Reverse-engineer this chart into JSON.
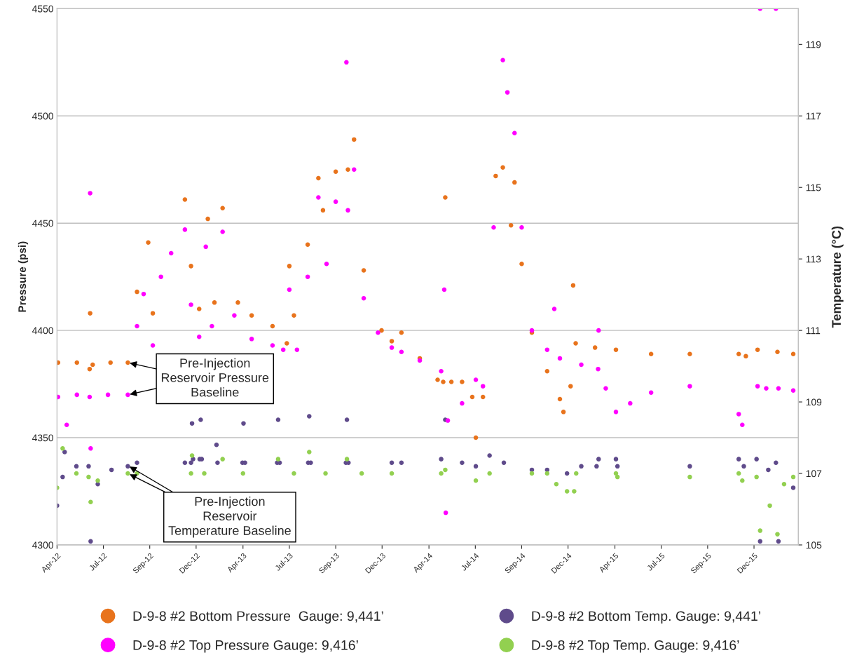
{
  "chart_data": {
    "type": "scatter",
    "ylabel": "Pressure (psi)",
    "y2label": "Temperature (°C)",
    "xlim": [
      "2012-04-01",
      "2016-03-26"
    ],
    "xticks": [
      {
        "value": "2012-04-01",
        "label": "Apr-12"
      },
      {
        "value": "2012-07-01",
        "label": "Jul-12"
      },
      {
        "value": "2012-09-30",
        "label": "Sep-12"
      },
      {
        "value": "2012-12-30",
        "label": "Dec-12"
      },
      {
        "value": "2013-04-01",
        "label": "Apr-13"
      },
      {
        "value": "2013-07-01",
        "label": "Jul-13"
      },
      {
        "value": "2013-09-30",
        "label": "Sep-13"
      },
      {
        "value": "2013-12-30",
        "label": "Dec-13"
      },
      {
        "value": "2014-04-01",
        "label": "Apr-14"
      },
      {
        "value": "2014-07-01",
        "label": "Jul-14"
      },
      {
        "value": "2014-09-30",
        "label": "Sep-14"
      },
      {
        "value": "2014-12-30",
        "label": "Dec-14"
      },
      {
        "value": "2015-04-01",
        "label": "Apr-15"
      },
      {
        "value": "2015-07-01",
        "label": "Jul-15"
      },
      {
        "value": "2015-09-30",
        "label": "Sep-15"
      },
      {
        "value": "2015-12-30",
        "label": "Dec-15"
      }
    ],
    "ylim": [
      4300,
      4550
    ],
    "yticks": [
      4300,
      4350,
      4400,
      4450,
      4500,
      4550
    ],
    "y2lim": [
      105,
      120
    ],
    "y2ticks": [
      105,
      107,
      109,
      111,
      113,
      115,
      117,
      119
    ],
    "grid": "y",
    "legend": "bottom",
    "marker": "circle",
    "series": [
      {
        "name": "D-9-8 #2 Bottom Pressure  Gauge: 9,441’",
        "color": "#e8731c",
        "x": [
          "2012-04-03",
          "2012-05-10",
          "2012-06-04",
          "2012-06-05",
          "2012-06-10",
          "2012-07-15",
          "2012-08-18",
          "2012-09-05",
          "2012-09-27",
          "2012-10-06",
          "2012-12-08",
          "2012-12-20",
          "2013-01-05",
          "2013-01-22",
          "2013-02-04",
          "2013-02-20",
          "2013-03-22",
          "2013-04-18",
          "2013-05-29",
          "2013-06-26",
          "2013-07-01",
          "2013-07-10",
          "2013-08-06",
          "2013-08-27",
          "2013-09-05",
          "2013-09-30",
          "2013-10-24",
          "2013-11-05",
          "2013-11-24",
          "2013-12-29",
          "2014-01-18",
          "2014-02-06",
          "2014-03-14",
          "2014-04-18",
          "2014-04-29",
          "2014-05-03",
          "2014-05-15",
          "2014-06-05",
          "2014-06-25",
          "2014-07-02",
          "2014-07-16",
          "2014-08-10",
          "2014-08-24",
          "2014-09-09",
          "2014-09-16",
          "2014-09-30",
          "2014-10-20",
          "2014-11-19",
          "2014-12-14",
          "2014-12-21",
          "2015-01-04",
          "2015-01-09",
          "2015-01-14",
          "2015-02-21",
          "2015-04-03",
          "2015-06-11",
          "2015-08-26",
          "2015-11-30",
          "2015-12-14",
          "2016-01-06",
          "2016-02-14",
          "2016-03-16"
        ],
        "values": [
          4385,
          4385,
          4382,
          4408,
          4384,
          4385,
          4385,
          4418,
          4441,
          4408,
          4461,
          4430,
          4410,
          4452,
          4413,
          4457,
          4413,
          4407,
          4402,
          4394,
          4430,
          4407,
          4440,
          4471,
          4456,
          4474,
          4475,
          4489,
          4428,
          4400,
          4395,
          4399,
          4387,
          4377,
          4376,
          4462,
          4376,
          4376,
          4369,
          4350,
          4369,
          4472,
          4476,
          4449,
          4469,
          4431,
          4399,
          4381,
          4368,
          4362,
          4374,
          4421,
          4394,
          4392,
          4391,
          4389,
          4389,
          4389,
          4388,
          4391,
          4390,
          4389
        ]
      },
      {
        "name": "D-9-8 #2 Top Pressure Gauge: 9,416’",
        "color": "#ff00ff",
        "x": [
          "2012-04-03",
          "2012-04-20",
          "2012-05-10",
          "2012-06-04",
          "2012-06-05",
          "2012-06-06",
          "2012-07-10",
          "2012-08-18",
          "2012-09-05",
          "2012-09-18",
          "2012-10-06",
          "2012-10-22",
          "2012-11-11",
          "2012-12-08",
          "2012-12-20",
          "2013-01-05",
          "2013-01-18",
          "2013-01-30",
          "2013-02-20",
          "2013-03-15",
          "2013-04-18",
          "2013-05-29",
          "2013-06-19",
          "2013-07-01",
          "2013-07-16",
          "2013-08-06",
          "2013-08-27",
          "2013-09-12",
          "2013-09-30",
          "2013-10-21",
          "2013-10-24",
          "2013-11-05",
          "2013-11-24",
          "2013-12-22",
          "2014-01-18",
          "2014-02-06",
          "2014-03-14",
          "2014-04-25",
          "2014-05-01",
          "2014-05-04",
          "2014-05-08",
          "2014-06-05",
          "2014-07-02",
          "2014-07-16",
          "2014-08-06",
          "2014-08-24",
          "2014-09-02",
          "2014-09-16",
          "2014-09-30",
          "2014-10-20",
          "2014-11-19",
          "2014-12-03",
          "2014-12-14",
          "2015-01-25",
          "2015-02-27",
          "2015-02-28",
          "2015-03-14",
          "2015-04-03",
          "2015-05-01",
          "2015-06-11",
          "2015-08-26",
          "2015-11-30",
          "2015-12-07",
          "2016-01-06",
          "2016-01-11",
          "2016-01-23",
          "2016-02-11",
          "2016-02-16",
          "2016-03-16"
        ],
        "values": [
          4369,
          4356,
          4370,
          4369,
          4464,
          4345,
          4370,
          4370,
          4402,
          4417,
          4393,
          4425,
          4436,
          4447,
          4412,
          4397,
          4439,
          4402,
          4446,
          4407,
          4396,
          4393,
          4391,
          4419,
          4391,
          4425,
          4462,
          4431,
          4460,
          4525,
          4456,
          4475,
          4415,
          4399,
          4392,
          4390,
          4386,
          4381,
          4419,
          4315,
          4358,
          4366,
          4377,
          4374,
          4448,
          4526,
          4511,
          4492,
          4448,
          4400,
          4391,
          4410,
          4387,
          4384,
          4382,
          4400,
          4373,
          4362,
          4366,
          4371,
          4374,
          4361,
          4356,
          4374,
          4550,
          4373,
          4550,
          4373,
          4372
        ]
      },
      {
        "name": "D-9-8 #2 Bottom Temp. Gauge: 9,441’",
        "color": "#5f4b8b",
        "axis": "y2",
        "x": [
          "2012-04-01",
          "2012-04-12",
          "2012-04-16",
          "2012-05-09",
          "2012-06-02",
          "2012-06-06",
          "2012-06-20",
          "2012-07-17",
          "2012-08-18",
          "2012-09-05",
          "2012-12-08",
          "2012-12-20",
          "2012-12-22",
          "2012-12-24",
          "2013-01-06",
          "2013-01-08",
          "2013-01-10",
          "2013-02-08",
          "2013-02-10",
          "2013-03-31",
          "2013-04-02",
          "2013-04-05",
          "2013-06-07",
          "2013-06-09",
          "2013-06-12",
          "2013-08-07",
          "2013-08-09",
          "2013-08-12",
          "2013-10-20",
          "2013-10-22",
          "2013-10-25",
          "2014-01-18",
          "2014-02-06",
          "2014-04-25",
          "2014-05-03",
          "2014-06-05",
          "2014-07-02",
          "2014-07-29",
          "2014-08-26",
          "2014-10-20",
          "2014-11-19",
          "2014-12-28",
          "2015-01-25",
          "2015-02-24",
          "2015-02-28",
          "2015-04-03",
          "2015-04-06",
          "2015-08-26",
          "2015-11-30",
          "2015-12-10",
          "2016-01-04",
          "2016-01-11",
          "2016-01-27",
          "2016-02-11",
          "2016-02-16",
          "2016-03-16"
        ],
        "values": [
          106.1,
          106.9,
          107.6,
          107.2,
          107.2,
          105.1,
          106.7,
          107.1,
          107.2,
          107.3,
          107.3,
          107.3,
          108.4,
          107.4,
          107.4,
          108.5,
          107.4,
          107.8,
          107.3,
          107.3,
          108.4,
          107.3,
          107.3,
          108.5,
          107.3,
          107.3,
          108.6,
          107.3,
          107.3,
          108.5,
          107.3,
          107.3,
          107.3,
          107.4,
          108.5,
          107.3,
          107.2,
          107.5,
          107.3,
          107.1,
          107.1,
          107.0,
          107.2,
          107.2,
          107.4,
          107.4,
          107.2,
          107.2,
          107.4,
          107.2,
          107.4,
          105.1,
          107.1,
          107.3,
          105.1,
          106.6
        ]
      },
      {
        "name": "D-9-8 #2 Top Temp. Gauge: 9,416’",
        "color": "#92d050",
        "axis": "y2",
        "x": [
          "2012-04-01",
          "2012-04-12",
          "2012-05-09",
          "2012-06-02",
          "2012-06-06",
          "2012-06-20",
          "2012-08-18",
          "2012-09-05",
          "2012-12-20",
          "2012-12-22",
          "2013-01-15",
          "2013-02-20",
          "2013-04-01",
          "2013-06-09",
          "2013-07-10",
          "2013-08-09",
          "2013-09-10",
          "2013-10-22",
          "2013-11-20",
          "2014-01-18",
          "2014-04-25",
          "2014-05-03",
          "2014-07-02",
          "2014-07-29",
          "2014-10-20",
          "2014-11-19",
          "2014-12-07",
          "2014-12-28",
          "2015-01-11",
          "2015-01-15",
          "2015-04-03",
          "2015-04-06",
          "2015-08-26",
          "2015-11-30",
          "2015-12-07",
          "2016-01-04",
          "2016-01-11",
          "2016-01-30",
          "2016-02-14",
          "2016-02-27",
          "2016-03-16"
        ],
        "values": [
          106.6,
          107.7,
          107.0,
          106.9,
          106.2,
          106.8,
          107.0,
          107.0,
          107.0,
          107.5,
          107.0,
          107.4,
          107.0,
          107.4,
          107.0,
          107.6,
          107.0,
          107.4,
          107.0,
          107.0,
          107.0,
          107.1,
          106.8,
          107.0,
          107.0,
          107.0,
          106.7,
          106.5,
          106.5,
          107.0,
          107.0,
          106.9,
          106.9,
          107.0,
          106.8,
          106.9,
          105.4,
          106.1,
          105.3,
          106.7,
          106.9
        ]
      }
    ],
    "annotations": [
      {
        "text": "Pre-Injection\nReservoir Pressure\nBaseline",
        "x": "2012-08-18",
        "y": 4385
      },
      {
        "text": "Pre-Injection\nReservoir\nTemperature Baseline",
        "x": "2012-08-18",
        "y": 4337
      }
    ]
  }
}
